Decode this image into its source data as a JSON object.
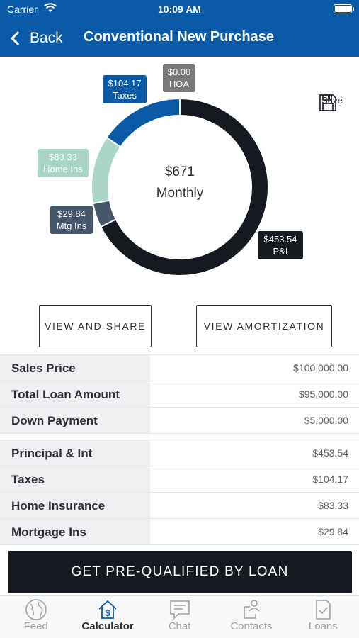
{
  "status_bar": {
    "carrier": "Carrier",
    "time": "10:09 AM"
  },
  "nav": {
    "back_label": "Back",
    "title": "Conventional New Purchase"
  },
  "chart_data": {
    "type": "pie",
    "donut": true,
    "center_value": "$671",
    "center_label": "Monthly",
    "slices": [
      {
        "label": "P&I",
        "value": 453.54,
        "display": "$453.54",
        "color": "#151a21"
      },
      {
        "label": "Mtg Ins",
        "value": 29.84,
        "display": "$29.84",
        "color": "#46566b"
      },
      {
        "label": "Home Ins",
        "value": 83.33,
        "display": "$83.33",
        "color": "#a9d6c8"
      },
      {
        "label": "Taxes",
        "value": 104.17,
        "display": "$104.17",
        "color": "#0b5aa8"
      },
      {
        "label": "HOA",
        "value": 0.0,
        "display": "$0.00",
        "color": "#7a7a7a"
      }
    ]
  },
  "save": {
    "label": "Save"
  },
  "buttons": {
    "view_share": "VIEW AND SHARE",
    "view_amortization": "VIEW AMORTIZATION"
  },
  "loan_summary": [
    {
      "label": "Sales Price",
      "value": "$100,000.00"
    },
    {
      "label": "Total Loan Amount",
      "value": "$95,000.00"
    },
    {
      "label": "Down Payment",
      "value": "$5,000.00"
    }
  ],
  "payment_breakdown": [
    {
      "label": "Principal & Int",
      "value": "$453.54"
    },
    {
      "label": "Taxes",
      "value": "$104.17"
    },
    {
      "label": "Home Insurance",
      "value": "$83.33"
    },
    {
      "label": "Mortgage Ins",
      "value": "$29.84"
    }
  ],
  "cta": {
    "label": "GET PRE-QUALIFIED BY LOAN"
  },
  "tabs": [
    {
      "label": "Feed",
      "icon": "globe-icon",
      "active": false
    },
    {
      "label": "Calculator",
      "icon": "house-dollar-icon",
      "active": true
    },
    {
      "label": "Chat",
      "icon": "chat-icon",
      "active": false
    },
    {
      "label": "Contacts",
      "icon": "contacts-icon",
      "active": false
    },
    {
      "label": "Loans",
      "icon": "document-check-icon",
      "active": false
    }
  ],
  "colors": {
    "brand_blue": "#0b5aa8",
    "dark": "#151a21"
  }
}
